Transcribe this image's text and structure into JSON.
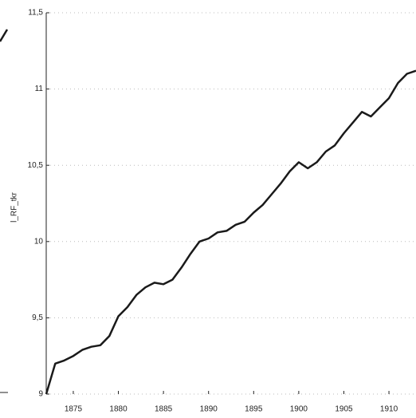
{
  "chart_data": {
    "type": "line",
    "y_label": "l_RF_tkr",
    "x": [
      1872,
      1873,
      1874,
      1875,
      1876,
      1877,
      1878,
      1879,
      1880,
      1881,
      1882,
      1883,
      1884,
      1885,
      1886,
      1887,
      1888,
      1889,
      1890,
      1891,
      1892,
      1893,
      1894,
      1895,
      1896,
      1897,
      1898,
      1899,
      1900,
      1901,
      1902,
      1903,
      1904,
      1905,
      1906,
      1907,
      1908,
      1909,
      1910,
      1911,
      1912,
      1913
    ],
    "series": [
      {
        "color": "#1a1a1a",
        "values": [
          9.0,
          9.2,
          9.22,
          9.25,
          9.29,
          9.31,
          9.32,
          9.38,
          9.51,
          9.57,
          9.65,
          9.7,
          9.73,
          9.72,
          9.75,
          9.83,
          9.92,
          10.0,
          10.02,
          10.06,
          10.07,
          10.11,
          10.13,
          10.19,
          10.24,
          10.31,
          10.38,
          10.46,
          10.52,
          10.48,
          10.52,
          10.59,
          10.63,
          10.71,
          10.78,
          10.85,
          10.82,
          10.88,
          10.94,
          11.04,
          11.1,
          11.12
        ]
      }
    ],
    "xlim": [
      1872,
      1913
    ],
    "xticks": [
      1875,
      1880,
      1885,
      1890,
      1895,
      1900,
      1905,
      1910
    ],
    "ylim": [
      9,
      11.5
    ],
    "yticks": [
      9,
      {
        "value": 9.5,
        "label": "9,5"
      },
      10,
      {
        "value": 10.5,
        "label": "10,5"
      },
      11,
      {
        "value": 11.5,
        "label": "11,5"
      }
    ],
    "grid": true
  }
}
